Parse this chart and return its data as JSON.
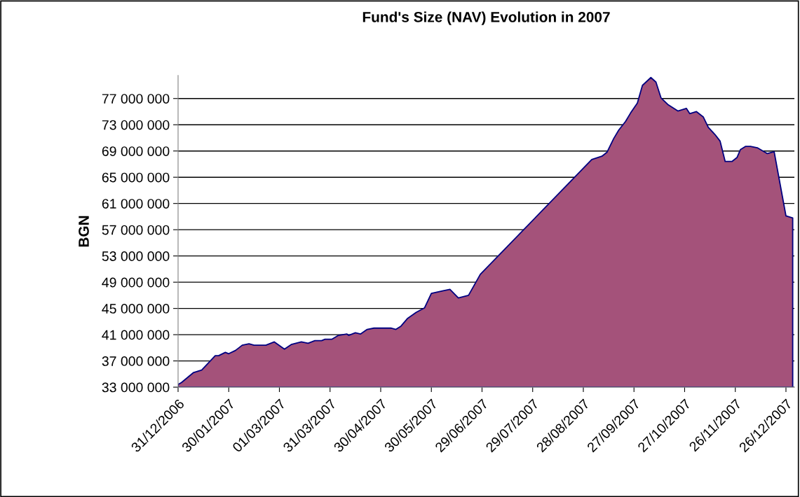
{
  "chart_data": {
    "type": "area",
    "title": "Fund's Size (NAV) Evolution in 2007",
    "ylabel": "BGN",
    "x": [
      "2006-12-31",
      "2007-01-02",
      "2007-01-09",
      "2007-01-14",
      "2007-01-22",
      "2007-01-24",
      "2007-01-28",
      "2007-01-30",
      "2007-02-03",
      "2007-02-07",
      "2007-02-11",
      "2007-02-14",
      "2007-02-21",
      "2007-02-26",
      "2007-03-04",
      "2007-03-08",
      "2007-03-14",
      "2007-03-18",
      "2007-03-22",
      "2007-03-26",
      "2007-03-28",
      "2007-04-01",
      "2007-04-05",
      "2007-04-10",
      "2007-04-11",
      "2007-04-15",
      "2007-04-18",
      "2007-04-22",
      "2007-04-26",
      "2007-05-06",
      "2007-05-09",
      "2007-05-12",
      "2007-05-16",
      "2007-05-21",
      "2007-05-26",
      "2007-05-30",
      "2007-06-06",
      "2007-06-10",
      "2007-06-15",
      "2007-06-21",
      "2007-06-28",
      "2007-09-02",
      "2007-09-08",
      "2007-09-11",
      "2007-09-15",
      "2007-09-18",
      "2007-09-22",
      "2007-09-25",
      "2007-09-29",
      "2007-10-02",
      "2007-10-07",
      "2007-10-10",
      "2007-10-13",
      "2007-10-17",
      "2007-10-23",
      "2007-10-28",
      "2007-10-30",
      "2007-11-03",
      "2007-11-07",
      "2007-11-10",
      "2007-11-14",
      "2007-11-17",
      "2007-11-20",
      "2007-11-24",
      "2007-11-27",
      "2007-11-29",
      "2007-12-02",
      "2007-12-05",
      "2007-12-09",
      "2007-12-15",
      "2007-12-19",
      "2007-12-26",
      "2007-12-30"
    ],
    "series": [
      {
        "color": "#a4527a",
        "values": [
          33400000,
          33700000,
          35200000,
          35600000,
          37800000,
          37800000,
          38300000,
          38100000,
          38600000,
          39400000,
          39600000,
          39400000,
          39400000,
          39900000,
          38800000,
          39500000,
          39900000,
          39700000,
          40100000,
          40100000,
          40300000,
          40300000,
          40900000,
          41100000,
          40900000,
          41300000,
          41100000,
          41800000,
          42000000,
          42000000,
          41800000,
          42300000,
          43500000,
          44400000,
          45100000,
          47300000,
          47700000,
          47900000,
          46600000,
          47000000,
          50200000,
          67700000,
          68200000,
          68800000,
          70900000,
          72200000,
          73500000,
          74800000,
          76300000,
          79000000,
          80200000,
          79500000,
          77100000,
          76100000,
          75100000,
          75500000,
          74700000,
          75000000,
          74200000,
          72600000,
          71500000,
          70500000,
          67400000,
          67400000,
          68000000,
          69200000,
          69700000,
          69700000,
          69500000,
          68600000,
          68900000,
          59100000,
          58800000
        ]
      }
    ],
    "xlim": [
      "2006-12-31",
      "2007-12-31"
    ],
    "xticks": [
      {
        "value": "2006-12-31",
        "label": "31/12/2006"
      },
      {
        "value": "2007-01-30",
        "label": "30/01/2007"
      },
      {
        "value": "2007-03-01",
        "label": "01/03/2007"
      },
      {
        "value": "2007-03-31",
        "label": "31/03/2007"
      },
      {
        "value": "2007-04-30",
        "label": "30/04/2007"
      },
      {
        "value": "2007-05-30",
        "label": "30/05/2007"
      },
      {
        "value": "2007-06-29",
        "label": "29/06/2007"
      },
      {
        "value": "2007-07-29",
        "label": "29/07/2007"
      },
      {
        "value": "2007-08-28",
        "label": "28/08/2007"
      },
      {
        "value": "2007-09-27",
        "label": "27/09/2007"
      },
      {
        "value": "2007-10-27",
        "label": "27/10/2007"
      },
      {
        "value": "2007-11-26",
        "label": "26/11/2007"
      },
      {
        "value": "2007-12-26",
        "label": "26/12/2007"
      }
    ],
    "ylim": [
      33000000,
      80500000
    ],
    "yticks": [
      {
        "value": 33000000,
        "label": "33 000 000"
      },
      {
        "value": 37000000,
        "label": "37 000 000"
      },
      {
        "value": 41000000,
        "label": "41 000 000"
      },
      {
        "value": 45000000,
        "label": "45 000 000"
      },
      {
        "value": 49000000,
        "label": "49 000 000"
      },
      {
        "value": 53000000,
        "label": "53 000 000"
      },
      {
        "value": 57000000,
        "label": "57 000 000"
      },
      {
        "value": 61000000,
        "label": "61 000 000"
      },
      {
        "value": 65000000,
        "label": "65 000 000"
      },
      {
        "value": 69000000,
        "label": "69 000 000"
      },
      {
        "value": 73000000,
        "label": "73 000 000"
      },
      {
        "value": 77000000,
        "label": "77 000 000"
      }
    ],
    "grid": "y"
  }
}
